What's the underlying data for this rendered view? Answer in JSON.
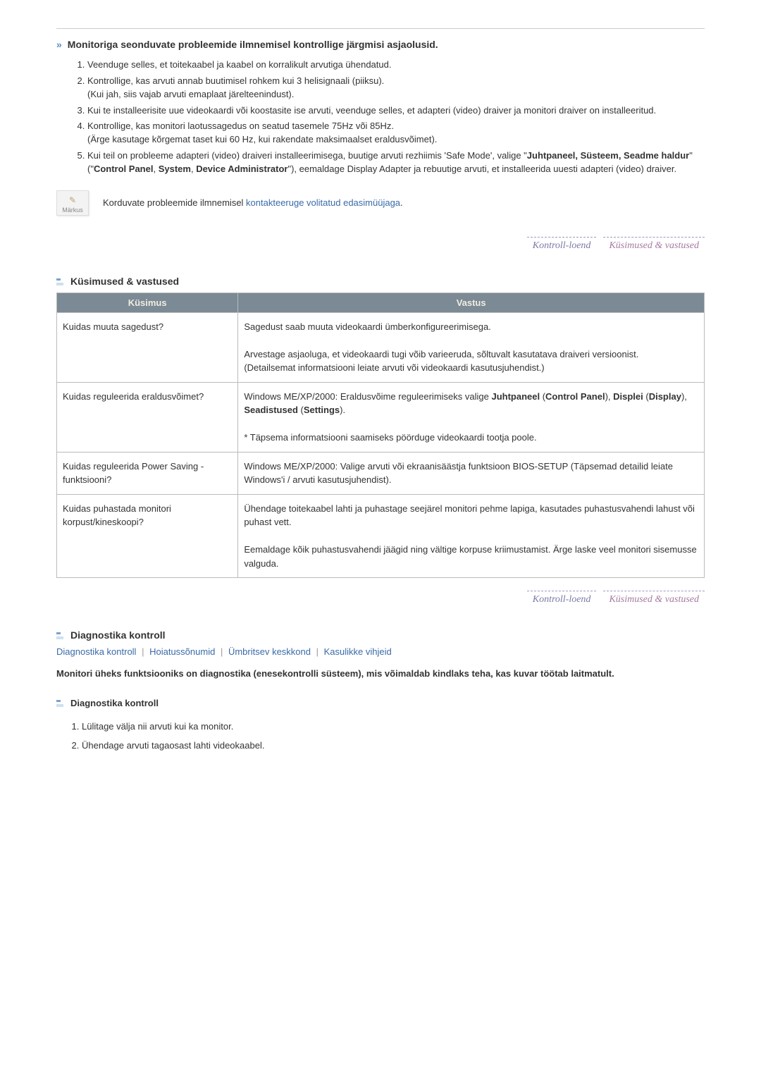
{
  "colors": {
    "link": "#3a6aa8",
    "tab": "#7a7aa8",
    "tab_active": "#a57ba0",
    "th_bg": "#7b8a95",
    "th_text": "#f0ede0",
    "border": "#bbbbbb"
  },
  "section1": {
    "title": "Monitoriga seonduvate probleemide ilmnemisel kontrollige järgmisi asjaolusid.",
    "items": {
      "i1": "Veenduge selles, et toitekaabel ja kaabel on korralikult arvutiga ühendatud.",
      "i2a": "Kontrollige, kas arvuti annab buutimisel rohkem kui 3 helisignaali (piiksu).",
      "i2b": "(Kui jah, siis vajab arvuti emaplaat järelteenindust).",
      "i3a": "Kui te installeerisite uue videokaardi või koostasite ise arvuti, veenduge selles, et adapteri (video) draiver ja monitori draiver on installeeritud.",
      "i4a": "Kontrollige, kas monitori laotussagedus on seatud tasemele 75Hz või 85Hz.",
      "i4b": "(Ärge kasutage kõrgemat taset kui 60 Hz, kui rakendate maksimaalset eraldusvõimet).",
      "i5a": "Kui teil on probleeme adapteri (video) draiveri installeerimisega, buutige arvuti rezhiimis 'Safe Mode', valige \"",
      "i5b": "Juhtpaneel, Süsteem, Seadme haldur",
      "i5c": "\" (\"",
      "i5d": "Control Panel",
      "i5e": ", ",
      "i5f": "System",
      "i5g": ", ",
      "i5h": "Device Administrator",
      "i5i": "\"), eemaldage Display Adapter ja rebuutige arvuti, et installeerida uuesti adapteri (video) draiver."
    },
    "note_label": "Märkus",
    "note_text": "Korduvate probleemide ilmnemisel ",
    "note_link": "kontakteeruge volitatud edasimüüjaga",
    "note_after": "."
  },
  "tabs": {
    "t1": "Kontroll-loend",
    "t2": "Küsimused & vastused"
  },
  "qa": {
    "title": "Küsimused & vastused",
    "th_q": "Küsimus",
    "th_a": "Vastus",
    "r1": {
      "q": "Kuidas muuta sagedust?",
      "a1": "Sagedust saab muuta videokaardi ümberkonfigureerimisega.",
      "a2": "Arvestage asjaoluga, et videokaardi tugi võib varieeruda, sõltuvalt kasutatava draiveri versioonist.",
      "a3": "(Detailsemat informatsiooni leiate arvuti või videokaardi kasutusjuhendist.)"
    },
    "r2": {
      "q": "Kuidas reguleerida eraldusvõimet?",
      "a1": "Windows ME/XP/2000: Eraldusvõime reguleerimiseks valige ",
      "a1b": "Juhtpaneel",
      "a1c": " (",
      "a1d": "Control Panel",
      "a1e": "), ",
      "a1f": "Displei",
      "a1g": " (",
      "a1h": "Display",
      "a1i": "), ",
      "a1j": "Seadistused",
      "a1k": " (",
      "a1l": "Settings",
      "a1m": ").",
      "a2": "* Täpsema informatsiooni saamiseks pöörduge videokaardi tootja poole."
    },
    "r3": {
      "q": "Kuidas reguleerida Power Saving - funktsiooni?",
      "a": "Windows ME/XP/2000: Valige arvuti või ekraanisäästja funktsioon BIOS-SETUP (Täpsemad detailid leiate Windows'i / arvuti kasutusjuhendist)."
    },
    "r4": {
      "q": "Kuidas puhastada monitori korpust/kineskoopi?",
      "a1": "Ühendage toitekaabel lahti ja puhastage seejärel monitori pehme lapiga, kasutades puhastusvahendi lahust või puhast vett.",
      "a2": "Eemaldage kõik puhastusvahendi jäägid ning vältige korpuse kriimustamist. Ärge laske veel monitori sisemusse valguda."
    }
  },
  "diag": {
    "title": "Diagnostika kontroll",
    "links": {
      "l1": "Diagnostika kontroll",
      "l2": "Hoiatussõnumid",
      "l3": "Ümbritsev keskkond",
      "l4": "Kasulikke vihjeid"
    },
    "intro": "Monitori üheks funktsiooniks on diagnostika (enesekontrolli süsteem), mis võimaldab kindlaks teha, kas kuvar töötab laitmatult.",
    "sub_title": "Diagnostika kontroll",
    "steps": {
      "s1": "Lülitage välja nii arvuti kui ka monitor.",
      "s2": "Ühendage arvuti tagaosast lahti videokaabel."
    }
  }
}
